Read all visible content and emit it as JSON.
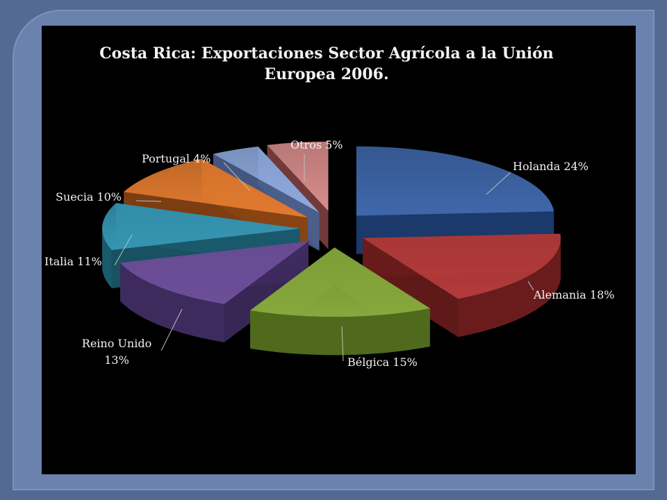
{
  "chart_data": {
    "type": "pie",
    "title": "Costa Rica: Exportaciones Sector Agrícola a la Unión\nEuropea 2006.",
    "slices": [
      {
        "label": "Holanda 24%",
        "value": 24,
        "color": "#3f67aa",
        "dark": "#1f3f77"
      },
      {
        "label": "Alemania 18%",
        "value": 18,
        "color": "#b53b3b",
        "dark": "#6a1c1c"
      },
      {
        "label": "Bélgica 15%",
        "value": 15,
        "color": "#86a83c",
        "dark": "#4f6a1d"
      },
      {
        "label": "Reino Unido\n13%",
        "value": 13,
        "color": "#6d4f9a",
        "dark": "#3e2b5e"
      },
      {
        "label": "Italia 11%",
        "value": 11,
        "color": "#3596b3",
        "dark": "#1a5a6d"
      },
      {
        "label": "Suecia 10%",
        "value": 10,
        "color": "#e17a2f",
        "dark": "#8a4413"
      },
      {
        "label": "Portugal 4%",
        "value": 4,
        "color": "#8ea9dc",
        "dark": "#4b5f8c"
      },
      {
        "label": "Otros 5%",
        "value": 5,
        "color": "#d88d8b",
        "dark": "#7d4040"
      }
    ],
    "legend": "none"
  }
}
